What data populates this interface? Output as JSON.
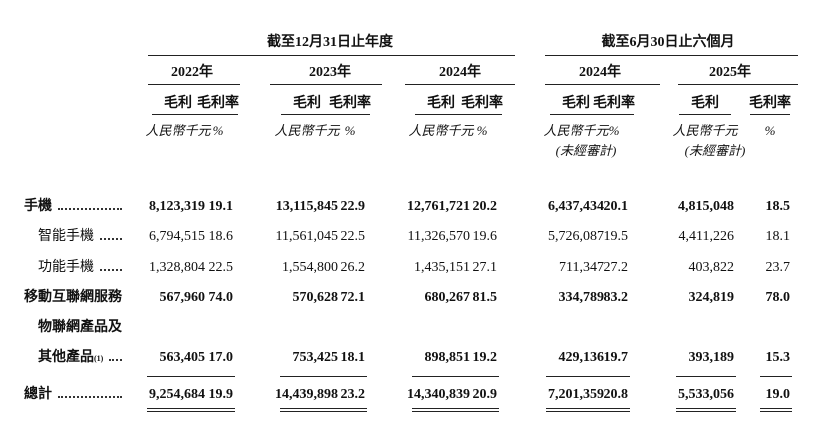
{
  "table": {
    "period_headers": [
      "截至12月31日止年度",
      "截至6月30日止六個月"
    ],
    "years": [
      "2022年",
      "2023年",
      "2024年",
      "2024年",
      "2025年"
    ],
    "column_headers": [
      "毛利",
      "毛利率"
    ],
    "units": [
      "人民幣千元",
      "%"
    ],
    "unaudited": "(未經審計)",
    "rows": [
      {
        "label": "手機",
        "bold": true,
        "indent": false,
        "values": [
          "8,123,319",
          "19.1",
          "13,115,845",
          "22.9",
          "12,761,721",
          "20.2",
          "6,437,434",
          "20.1",
          "4,815,048",
          "18.5"
        ]
      },
      {
        "label": "智能手機",
        "bold": false,
        "indent": true,
        "values": [
          "6,794,515",
          "18.6",
          "11,561,045",
          "22.5",
          "11,326,570",
          "19.6",
          "5,726,087",
          "19.5",
          "4,411,226",
          "18.1"
        ]
      },
      {
        "label": "功能手機",
        "bold": false,
        "indent": true,
        "values": [
          "1,328,804",
          "22.5",
          "1,554,800",
          "26.2",
          "1,435,151",
          "27.1",
          "711,347",
          "27.2",
          "403,822",
          "23.7"
        ]
      },
      {
        "label": "移動互聯網服務",
        "bold": true,
        "indent": false,
        "values": [
          "567,960",
          "74.0",
          "570,628",
          "72.1",
          "680,267",
          "81.5",
          "334,789",
          "83.2",
          "324,819",
          "78.0"
        ]
      },
      {
        "label_lines": [
          "物聯網產品及",
          "其他產品"
        ],
        "note": "(1)",
        "bold": true,
        "indent": true,
        "values": [
          "563,405",
          "17.0",
          "753,425",
          "18.1",
          "898,851",
          "19.2",
          "429,136",
          "19.7",
          "393,189",
          "15.3"
        ]
      },
      {
        "label": "總計",
        "bold": true,
        "indent": false,
        "total": true,
        "values": [
          "9,254,684",
          "19.9",
          "14,439,898",
          "23.2",
          "14,340,839",
          "20.9",
          "7,201,359",
          "20.8",
          "5,533,056",
          "19.0"
        ]
      }
    ]
  }
}
